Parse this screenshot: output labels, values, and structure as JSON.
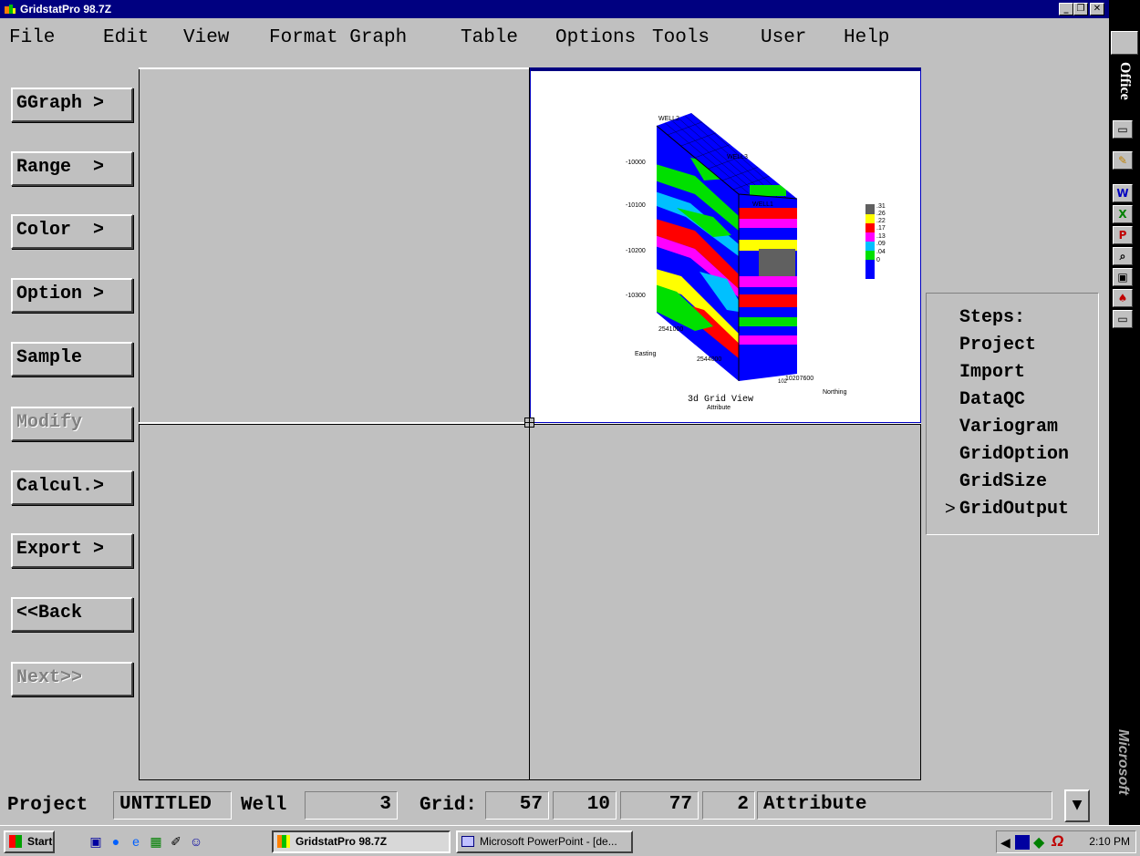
{
  "window": {
    "title": "GridstatPro 98.7Z"
  },
  "menu": [
    "File",
    "Edit",
    "View",
    "Format Graph",
    "Table",
    "Options",
    "Tools",
    "User",
    "Help"
  ],
  "left_buttons": [
    {
      "label": "GGraph >",
      "enabled": true
    },
    {
      "label": "Range  >",
      "enabled": true
    },
    {
      "label": "Color  >",
      "enabled": true
    },
    {
      "label": "Option >",
      "enabled": true
    },
    {
      "label": "Sample",
      "enabled": true
    },
    {
      "label": "Modify",
      "enabled": false
    },
    {
      "label": "Calcul.>",
      "enabled": true
    },
    {
      "label": "Export >",
      "enabled": true
    },
    {
      "label": "<<Back",
      "enabled": true
    },
    {
      "label": "Next>>",
      "enabled": false
    }
  ],
  "graph": {
    "title": "3d Grid View",
    "subtitle": "Attribute",
    "z_ticks": [
      "-10000",
      "-10100",
      "-10200",
      "-10300"
    ],
    "easting_ticks": [
      "2541000",
      "2544000"
    ],
    "northing_ticks": [
      "10207600"
    ],
    "northing_tick_partial": "102",
    "easting_label": "Easting",
    "northing_label": "Northing",
    "well_labels": [
      "WELL2",
      "WELL3",
      "WELL1"
    ],
    "legend": [
      {
        "label": ".31",
        "color": "#606060"
      },
      {
        "label": ".26",
        "color": "#ffff00"
      },
      {
        "label": ".22",
        "color": "#ff0000"
      },
      {
        "label": ".17",
        "color": "#ff00ff"
      },
      {
        "label": ".13",
        "color": "#00c0ff"
      },
      {
        "label": ".09",
        "color": "#00e000"
      },
      {
        "label": ".04",
        "color": "#0000ff"
      },
      {
        "label": "0",
        "color": "#0000ff"
      }
    ]
  },
  "steps": {
    "header": "Steps:",
    "items": [
      "Project",
      "Import",
      "DataQC",
      "Variogram",
      "GridOption",
      "GridSize",
      "GridOutput"
    ],
    "current": "GridOutput",
    "marker": ">"
  },
  "status": {
    "project_label": "Project",
    "project_value": "UNTITLED",
    "well_label": "Well",
    "well_value": "3",
    "grid_label": "Grid:",
    "grid_values": [
      "57",
      "10",
      "77"
    ],
    "layer_value": "2",
    "attribute": "Attribute"
  },
  "officebar": {
    "label": "Office",
    "brand": "Microsoft"
  },
  "taskbar": {
    "start": "Start",
    "tasks": [
      "GridstatPro 98.7Z",
      "Microsoft PowerPoint - [de..."
    ],
    "clock": "2:10 PM"
  }
}
